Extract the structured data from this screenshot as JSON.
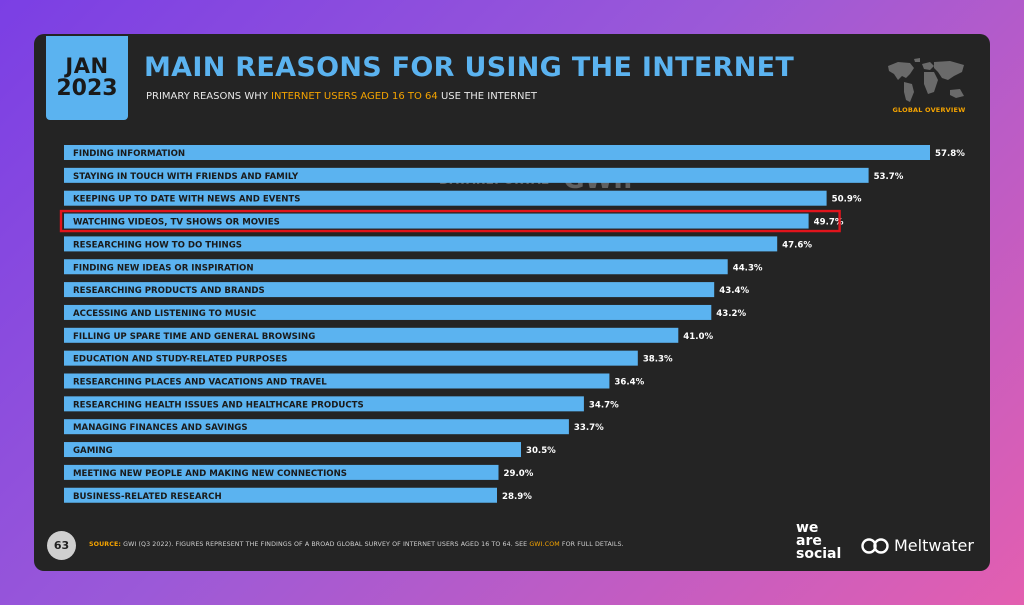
{
  "header": {
    "month": "JAN",
    "year": "2023",
    "subtitle_pre": "PRIMARY REASONS WHY ",
    "subtitle_highlight": "INTERNET USERS AGED 16 TO 64",
    "subtitle_post": " USE THE INTERNET",
    "overview_label": "GLOBAL OVERVIEW"
  },
  "watermark": {
    "datareportal": "DATAREPORTAL",
    "gwi": "GWI."
  },
  "footer": {
    "page_number": "63",
    "source_label": "SOURCE:",
    "source_text": " GWI (Q3 2022). FIGURES REPRESENT THE FINDINGS OF A BROAD GLOBAL SURVEY OF INTERNET USERS AGED 16 TO 64. SEE ",
    "source_link": "GWI.COM",
    "source_tail": " FOR FULL DETAILS.",
    "brand_we": "we",
    "brand_are": "are",
    "brand_social": "social",
    "brand_meltwater": "Meltwater"
  },
  "colors": {
    "bar": "#5bb3f0",
    "highlight_outline": "#e0141c",
    "accent": "#f4a300",
    "background": "#242424"
  },
  "chart_data": {
    "type": "bar",
    "orientation": "horizontal",
    "title": "MAIN REASONS FOR USING THE INTERNET",
    "categories": [
      "FINDING INFORMATION",
      "STAYING IN TOUCH WITH FRIENDS AND FAMILY",
      "KEEPING UP TO DATE WITH NEWS AND EVENTS",
      "WATCHING VIDEOS, TV SHOWS OR MOVIES",
      "RESEARCHING HOW TO DO THINGS",
      "FINDING NEW IDEAS OR INSPIRATION",
      "RESEARCHING PRODUCTS AND BRANDS",
      "ACCESSING AND LISTENING TO MUSIC",
      "FILLING UP SPARE TIME AND GENERAL BROWSING",
      "EDUCATION AND STUDY-RELATED PURPOSES",
      "RESEARCHING PLACES AND VACATIONS AND TRAVEL",
      "RESEARCHING HEALTH ISSUES AND HEALTHCARE PRODUCTS",
      "MANAGING FINANCES AND SAVINGS",
      "GAMING",
      "MEETING NEW PEOPLE AND MAKING NEW CONNECTIONS",
      "BUSINESS-RELATED RESEARCH"
    ],
    "values": [
      57.8,
      53.7,
      50.9,
      49.7,
      47.6,
      44.3,
      43.4,
      43.2,
      41.0,
      38.3,
      36.4,
      34.7,
      33.7,
      30.5,
      29.0,
      28.9
    ],
    "value_labels": [
      "57.8%",
      "53.7%",
      "50.9%",
      "49.7%",
      "47.6%",
      "44.3%",
      "43.4%",
      "43.2%",
      "41.0%",
      "38.3%",
      "36.4%",
      "34.7%",
      "33.7%",
      "30.5%",
      "29.0%",
      "28.9%"
    ],
    "highlighted_category": "WATCHING VIDEOS, TV SHOWS OR MOVIES",
    "unit": "%",
    "grid": false,
    "legend": "none"
  }
}
